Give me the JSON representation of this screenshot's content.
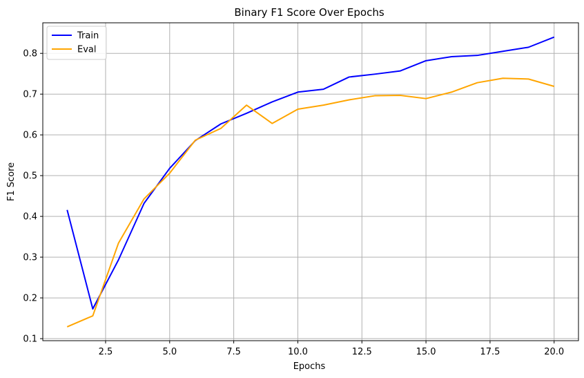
{
  "chart_data": {
    "type": "line",
    "title": "Binary F1 Score Over Epochs",
    "xlabel": "Epochs",
    "ylabel": "F1 Score",
    "xlim": [
      0.05,
      20.95
    ],
    "ylim": [
      0.095,
      0.875
    ],
    "xticks": [
      2.5,
      5.0,
      7.5,
      10.0,
      12.5,
      15.0,
      17.5,
      20.0
    ],
    "xtick_labels": [
      "2.5",
      "5.0",
      "7.5",
      "10.0",
      "12.5",
      "15.0",
      "17.5",
      "20.0"
    ],
    "yticks": [
      0.1,
      0.2,
      0.3,
      0.4,
      0.5,
      0.6,
      0.7,
      0.8
    ],
    "ytick_labels": [
      "0.1",
      "0.2",
      "0.3",
      "0.4",
      "0.5",
      "0.6",
      "0.7",
      "0.8"
    ],
    "grid": true,
    "legend_position": "top-left",
    "x": [
      1,
      2,
      3,
      4,
      5,
      6,
      7,
      8,
      9,
      10,
      11,
      12,
      13,
      14,
      15,
      16,
      17,
      18,
      19,
      20
    ],
    "series": [
      {
        "name": "Train",
        "color": "#0000ff",
        "values": [
          0.416,
          0.173,
          0.293,
          0.432,
          0.518,
          0.586,
          0.627,
          0.653,
          0.681,
          0.705,
          0.712,
          0.742,
          0.749,
          0.757,
          0.782,
          0.792,
          0.795,
          0.805,
          0.815,
          0.84
        ]
      },
      {
        "name": "Eval",
        "color": "#ffa500",
        "values": [
          0.129,
          0.156,
          0.334,
          0.443,
          0.506,
          0.587,
          0.616,
          0.673,
          0.628,
          0.663,
          0.673,
          0.686,
          0.696,
          0.697,
          0.689,
          0.705,
          0.728,
          0.739,
          0.737,
          0.719
        ]
      }
    ]
  }
}
